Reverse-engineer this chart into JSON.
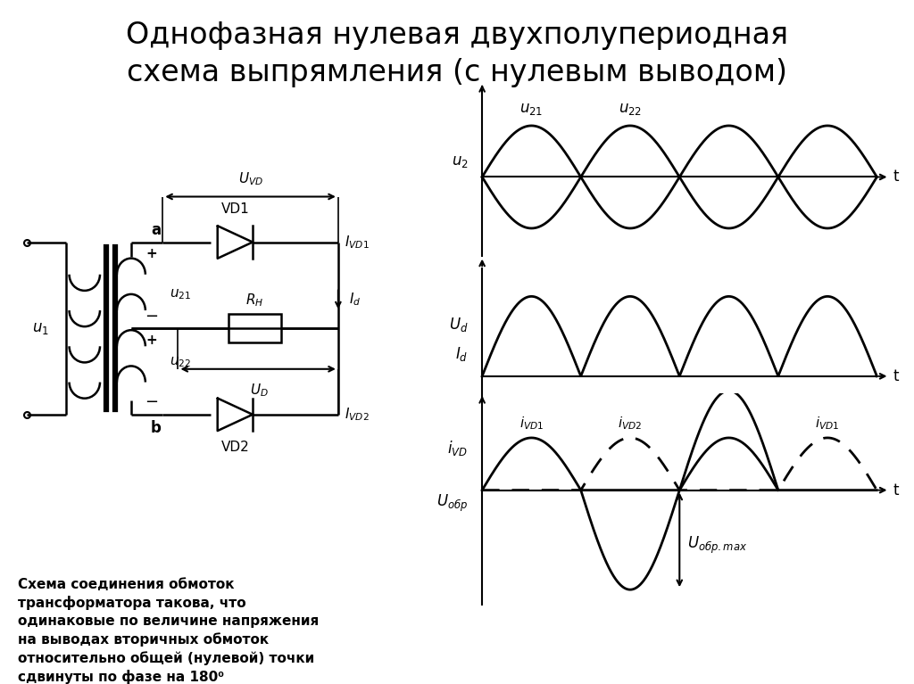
{
  "title_line1": "Однофазная нулевая двухполупериодная",
  "title_line2": "схема выпрямления (с нулевым выводом)",
  "title_fontsize": 24,
  "bg_color": "#ffffff",
  "text_color": "#000000",
  "description": "Схема соединения обмоток\nтрансформатора такова, что\nодинаковые по величине напряжения\nна выводах вторичных обмоток\nотносительно общей (нулевой) точки\nсдвинуты по фазе на 180⁰",
  "fs_circuit": 11,
  "fs_wave": 12,
  "lw_circuit": 1.8,
  "lw_wave": 2.0
}
